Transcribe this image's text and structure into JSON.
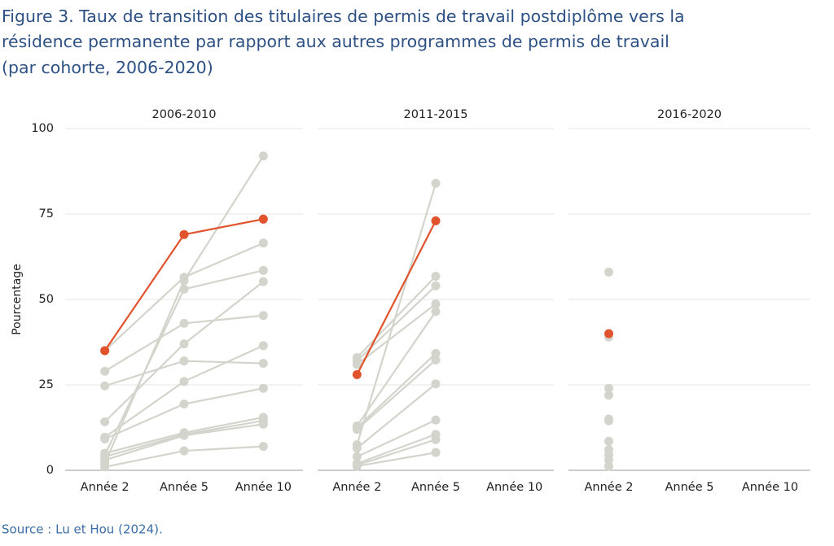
{
  "title_lines": [
    "Figure 3. Taux de transition des titulaires de permis de travail postdiplôme vers la",
    "résidence permanente par rapport aux autres programmes de permis de travail",
    "(par cohorte, 2006-2020)"
  ],
  "source": "Source : Lu et Hou (2024).",
  "chart_data": [
    {
      "type": "line",
      "title": "2006-2010",
      "ylabel": "Pourcentage",
      "ylim": [
        0,
        100
      ],
      "yticks": [
        0,
        25,
        50,
        75,
        100
      ],
      "grid": true,
      "categories": [
        "Année 2",
        "Année 5",
        "Année 10"
      ],
      "series": [
        {
          "color": "#d3d4cc",
          "values": [
            35,
            56.5,
            66.5
          ]
        },
        {
          "color": "#d3d4cc",
          "values": [
            29,
            43,
            45.3
          ]
        },
        {
          "color": "#d3d4cc",
          "values": [
            24.7,
            32,
            31.3
          ]
        },
        {
          "color": "#d3d4cc",
          "values": [
            14.2,
            37,
            55.2
          ]
        },
        {
          "color": "#d3d4cc",
          "values": [
            9.7,
            26,
            36.5
          ]
        },
        {
          "color": "#d3d4cc",
          "values": [
            9.2,
            19.4,
            24
          ]
        },
        {
          "color": "#d3d4cc",
          "values": [
            2,
            55.5,
            92
          ]
        },
        {
          "color": "#d3d4cc",
          "values": [
            4.5,
            53,
            58.5
          ]
        },
        {
          "color": "#d3d4cc",
          "values": [
            5,
            11,
            15.5
          ]
        },
        {
          "color": "#d3d4cc",
          "values": [
            4,
            10.5,
            14.5
          ]
        },
        {
          "color": "#d3d4cc",
          "values": [
            3,
            10.2,
            13.5
          ]
        },
        {
          "color": "#d3d4cc",
          "values": [
            1,
            5.7,
            7
          ]
        },
        {
          "color": "#e0532d",
          "values": [
            35,
            69,
            73.5
          ]
        }
      ]
    },
    {
      "type": "line",
      "title": "2011-2015",
      "categories": [
        "Année 2",
        "Année 5",
        "Année 10"
      ],
      "series": [
        {
          "color": "#d3d4cc",
          "values": [
            7.5,
            84,
            null
          ]
        },
        {
          "color": "#d3d4cc",
          "values": [
            33,
            56.8,
            null
          ]
        },
        {
          "color": "#d3d4cc",
          "values": [
            32,
            54,
            null
          ]
        },
        {
          "color": "#d3d4cc",
          "values": [
            31,
            48.7,
            null
          ]
        },
        {
          "color": "#d3d4cc",
          "values": [
            13,
            46.5,
            null
          ]
        },
        {
          "color": "#d3d4cc",
          "values": [
            12.5,
            34.2,
            null
          ]
        },
        {
          "color": "#d3d4cc",
          "values": [
            12,
            32.3,
            null
          ]
        },
        {
          "color": "#d3d4cc",
          "values": [
            6.5,
            25.3,
            null
          ]
        },
        {
          "color": "#d3d4cc",
          "values": [
            4,
            14.7,
            null
          ]
        },
        {
          "color": "#d3d4cc",
          "values": [
            2,
            10.5,
            null
          ]
        },
        {
          "color": "#d3d4cc",
          "values": [
            1.5,
            9,
            null
          ]
        },
        {
          "color": "#d3d4cc",
          "values": [
            1.2,
            5.2,
            null
          ]
        },
        {
          "color": "#e0532d",
          "values": [
            28,
            73,
            null
          ]
        }
      ]
    },
    {
      "type": "line",
      "title": "2016-2020",
      "categories": [
        "Année 2",
        "Année 5",
        "Année 10"
      ],
      "series": [
        {
          "color": "#d3d4cc",
          "values": [
            58,
            null,
            null
          ]
        },
        {
          "color": "#d3d4cc",
          "values": [
            39,
            null,
            null
          ]
        },
        {
          "color": "#d3d4cc",
          "values": [
            24,
            null,
            null
          ]
        },
        {
          "color": "#d3d4cc",
          "values": [
            22,
            null,
            null
          ]
        },
        {
          "color": "#d3d4cc",
          "values": [
            15,
            null,
            null
          ]
        },
        {
          "color": "#d3d4cc",
          "values": [
            14.5,
            null,
            null
          ]
        },
        {
          "color": "#d3d4cc",
          "values": [
            8.5,
            null,
            null
          ]
        },
        {
          "color": "#d3d4cc",
          "values": [
            6,
            null,
            null
          ]
        },
        {
          "color": "#d3d4cc",
          "values": [
            4.5,
            null,
            null
          ]
        },
        {
          "color": "#d3d4cc",
          "values": [
            3,
            null,
            null
          ]
        },
        {
          "color": "#d3d4cc",
          "values": [
            1.2,
            null,
            null
          ]
        },
        {
          "color": "#e0532d",
          "values": [
            40,
            null,
            null
          ]
        }
      ]
    }
  ]
}
